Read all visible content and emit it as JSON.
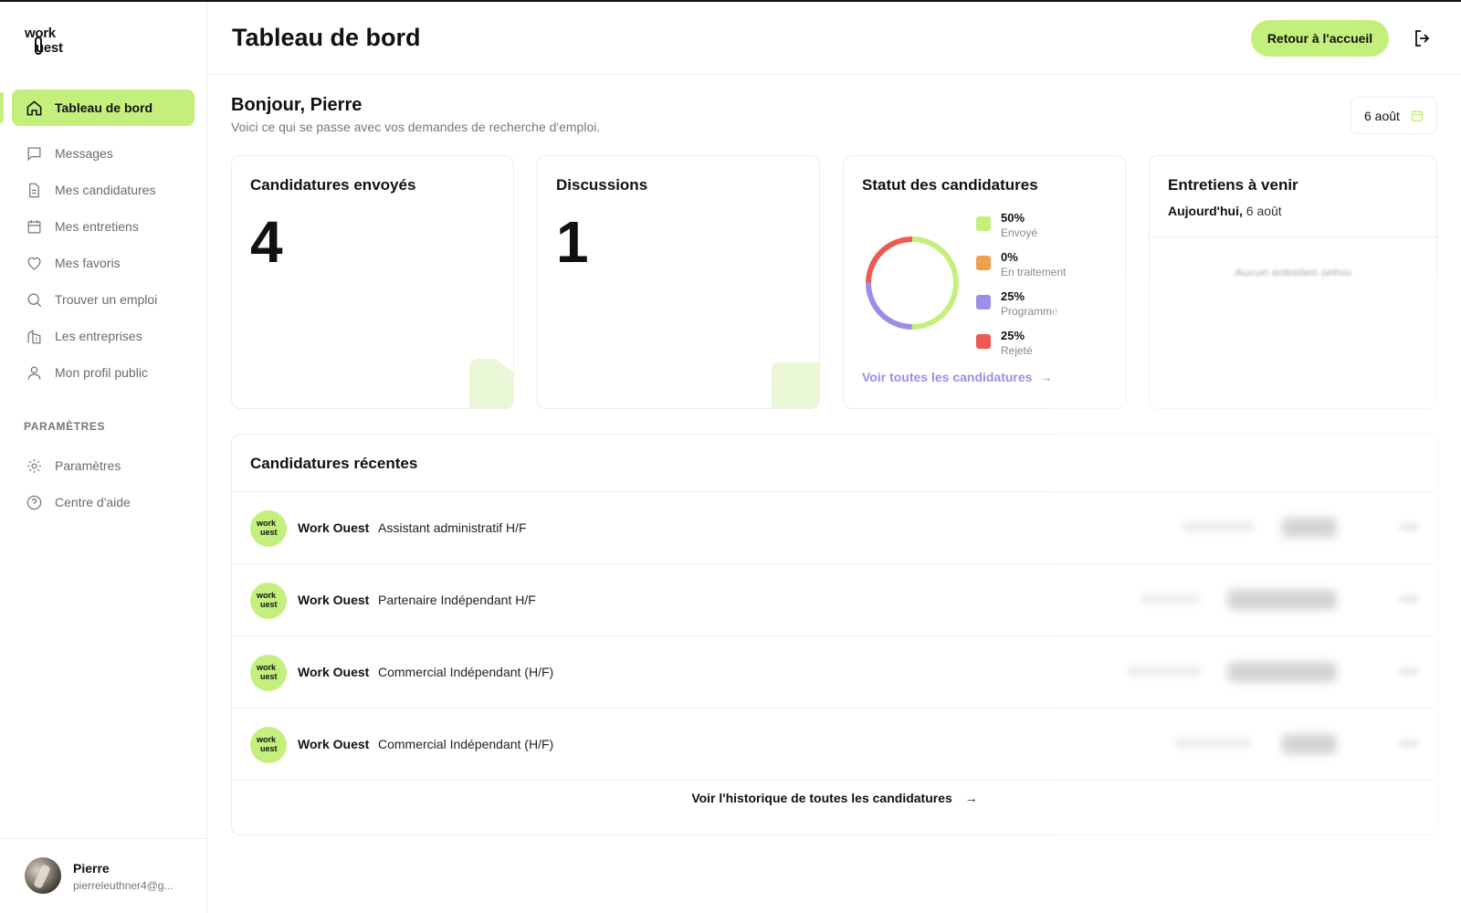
{
  "brand": {
    "logo_line1": "work",
    "logo_line2": "uest",
    "accent": "#c5ef7d"
  },
  "sidebar": {
    "items": [
      {
        "label": "Tableau de bord",
        "icon": "home-icon",
        "active": true
      },
      {
        "label": "Messages",
        "icon": "message-icon"
      },
      {
        "label": "Mes candidatures",
        "icon": "document-icon"
      },
      {
        "label": "Mes entretiens",
        "icon": "calendar-icon"
      },
      {
        "label": "Mes favoris",
        "icon": "heart-icon"
      },
      {
        "label": "Trouver un emploi",
        "icon": "search-icon"
      },
      {
        "label": "Les entreprises",
        "icon": "building-icon"
      },
      {
        "label": "Mon profil public",
        "icon": "user-icon"
      }
    ],
    "section_label": "PARAMÈTRES",
    "settings_items": [
      {
        "label": "Paramètres",
        "icon": "gear-icon"
      },
      {
        "label": "Centre d'aide",
        "icon": "help-icon"
      }
    ],
    "user": {
      "name": "Pierre",
      "email": "pierreleuthner4@g..."
    }
  },
  "header": {
    "title": "Tableau de bord",
    "home_button": "Retour à l'accueil"
  },
  "main": {
    "greeting": "Bonjour, Pierre",
    "subgreeting": "Voici ce qui se passe avec vos demandes de recherche d'emploi.",
    "date": "6 août",
    "cards": {
      "sent": {
        "title": "Candidatures envoyés",
        "value": "4"
      },
      "discussions": {
        "title": "Discussions",
        "value": "1"
      },
      "status": {
        "title": "Statut des candidatures",
        "link": "Voir toutes les candidatures",
        "legend": [
          {
            "pct": "50%",
            "label": "Envoyé",
            "color": "#c5ef7d"
          },
          {
            "pct": "0%",
            "label": "En traitement",
            "color": "#f0a04b"
          },
          {
            "pct": "25%",
            "label": "Programmé",
            "color": "#9b8ee6"
          },
          {
            "pct": "25%",
            "label": "Rejeté",
            "color": "#ee5a52"
          }
        ]
      },
      "interviews": {
        "title": "Entretiens à venir",
        "today_label": "Aujourd'hui,",
        "today_date": "6 août",
        "empty": "Aucun entretien prévu"
      }
    },
    "recent": {
      "title": "Candidatures récentes",
      "rows": [
        {
          "company": "Work Ouest",
          "job": "Assistant administratif H/F"
        },
        {
          "company": "Work Ouest",
          "job": "Partenaire Indépendant H/F"
        },
        {
          "company": "Work Ouest",
          "job": "Commercial Indépendant (H/F)"
        },
        {
          "company": "Work Ouest",
          "job": "Commercial Indépendant (H/F)"
        }
      ],
      "history_link": "Voir l'historique de toutes les candidatures"
    }
  }
}
